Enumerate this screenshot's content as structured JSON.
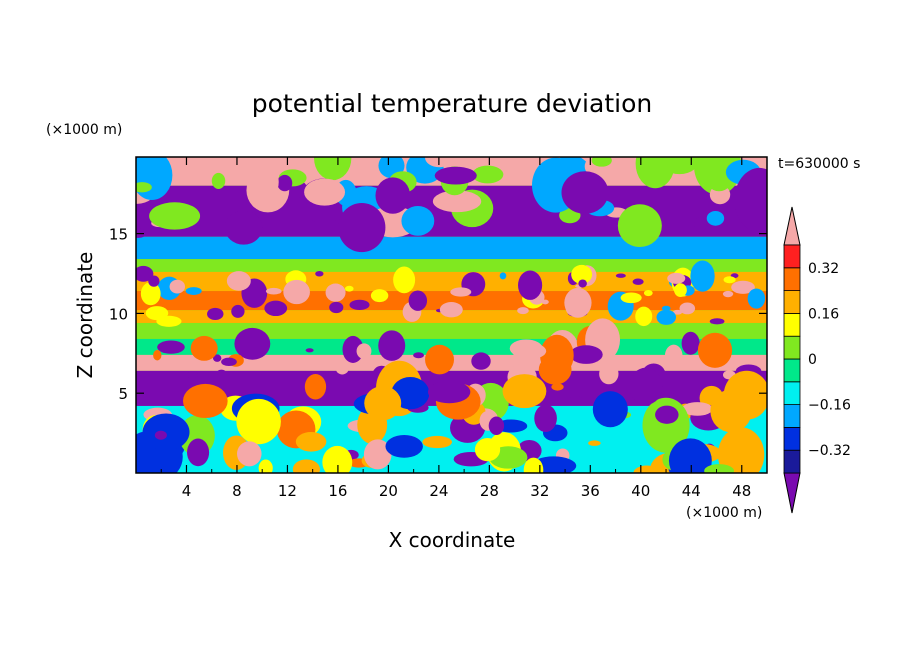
{
  "chart_data": {
    "type": "heatmap",
    "title": "potential temperature deviation",
    "xlabel": "X coordinate",
    "ylabel": "Z coordinate",
    "x_unit": "(×1000 m)",
    "y_unit": "(×1000 m)",
    "time_label": "t=630000 s",
    "xlim": [
      0,
      50
    ],
    "ylim": [
      0,
      19.8
    ],
    "x_ticks": [
      "4",
      "8",
      "12",
      "16",
      "20",
      "24",
      "28",
      "32",
      "36",
      "40",
      "44",
      "48"
    ],
    "x_tick_values": [
      4,
      8,
      12,
      16,
      20,
      24,
      28,
      32,
      36,
      40,
      44,
      48
    ],
    "y_ticks": [
      "5",
      "10",
      "15"
    ],
    "y_tick_values": [
      5,
      10,
      15
    ],
    "colorbar": {
      "levels": [
        -0.4,
        -0.32,
        -0.24,
        -0.16,
        -0.08,
        0,
        0.08,
        0.16,
        0.24,
        0.32,
        0.4
      ],
      "tick_labels": [
        "0.32",
        "0.16",
        "0",
        "−0.16",
        "−0.32"
      ],
      "tick_values": [
        0.32,
        0.16,
        0,
        -0.16,
        -0.32
      ],
      "colors": [
        "#7a0ab0",
        "#1a1a9a",
        "#0030e0",
        "#00a8ff",
        "#00f0f0",
        "#00e88a",
        "#80e820",
        "#ffff00",
        "#ffb000",
        "#ff7000",
        "#ff2020",
        "#f5a8a8"
      ],
      "extend": "both"
    },
    "bands": [
      {
        "z": [
          18.0,
          19.8
        ],
        "value": 0.45
      },
      {
        "z": [
          14.8,
          18.0
        ],
        "value": -0.45
      },
      {
        "z": [
          13.4,
          14.8
        ],
        "value": -0.2
      },
      {
        "z": [
          12.6,
          13.4
        ],
        "value": 0.05
      },
      {
        "z": [
          11.4,
          12.6
        ],
        "value": 0.22
      },
      {
        "z": [
          10.2,
          11.4
        ],
        "value": 0.3
      },
      {
        "z": [
          9.4,
          10.2
        ],
        "value": 0.18
      },
      {
        "z": [
          8.4,
          9.4
        ],
        "value": 0.05
      },
      {
        "z": [
          7.4,
          8.4
        ],
        "value": -0.05
      },
      {
        "z": [
          6.4,
          7.4
        ],
        "value": 0.45
      },
      {
        "z": [
          4.2,
          6.4
        ],
        "value": -0.45
      },
      {
        "z": [
          0,
          4.2
        ],
        "value": -0.12
      }
    ]
  }
}
